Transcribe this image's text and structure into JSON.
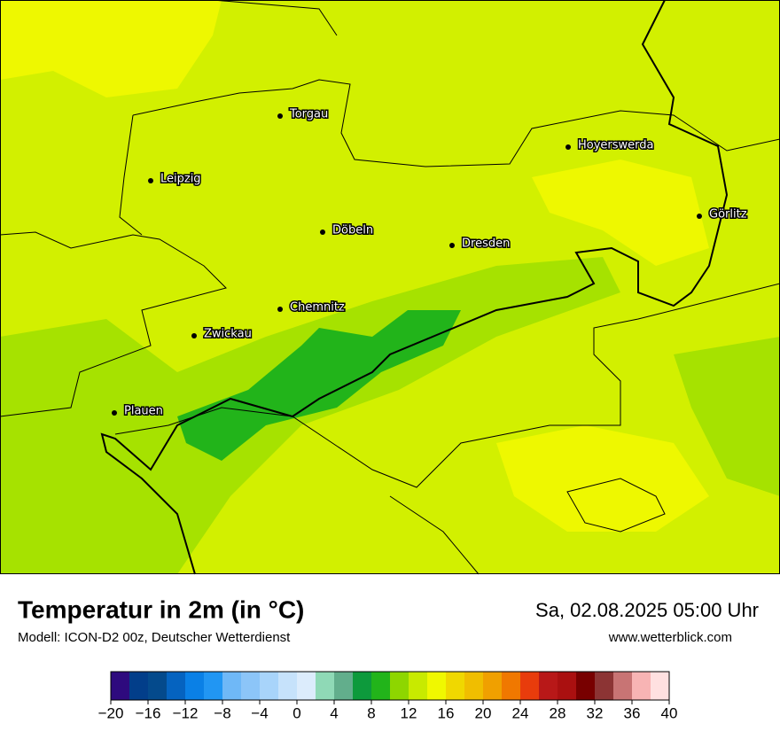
{
  "map": {
    "cities": [
      "Torgau",
      "Leipzig",
      "Hoyerswerda",
      "Görlitz",
      "Döbeln",
      "Dresden",
      "Chemnitz",
      "Zwickau",
      "Plauen"
    ]
  },
  "footer": {
    "title": "Temperatur in 2m (in °C)",
    "subtitle": "Modell: ICON-D2 00z, Deutscher Wetterdienst",
    "datetime": "Sa, 02.08.2025 05:00 Uhr",
    "website": "www.wetterblick.com"
  },
  "colorbar": {
    "range": [
      -20,
      40
    ],
    "colors": [
      "#2e0a7e",
      "#023e8a",
      "#044a8c",
      "#0563c0",
      "#0a80e6",
      "#2196f3",
      "#6fb8f7",
      "#8cc5f8",
      "#a8d4fa",
      "#c6e2fb",
      "#dcecfc",
      "#8fd9b6",
      "#62ae8c",
      "#0d9a3c",
      "#22b41a",
      "#8ed600",
      "#c8ea00",
      "#f0f800",
      "#f0d800",
      "#f0be00",
      "#f0a000",
      "#f07800",
      "#e83c0c",
      "#b81818",
      "#aa1010",
      "#780000",
      "#8c3434",
      "#c87474",
      "#f8b4b4",
      "#ffe0e0"
    ],
    "ticks": [
      {
        "value": -20,
        "label": "−20"
      },
      {
        "value": -16,
        "label": "−16"
      },
      {
        "value": -12,
        "label": "−12"
      },
      {
        "value": -8,
        "label": "−8"
      },
      {
        "value": -4,
        "label": "−4"
      },
      0,
      4,
      8,
      12,
      16,
      20,
      24,
      28,
      32,
      36,
      40
    ]
  }
}
